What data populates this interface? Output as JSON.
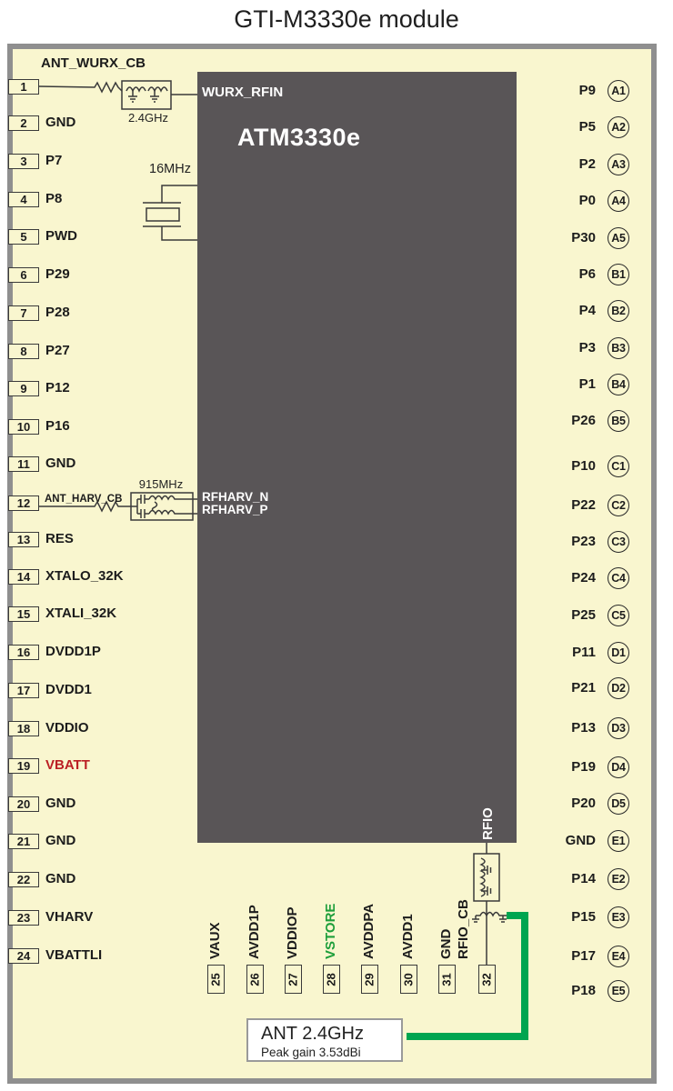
{
  "title": "GTI-M3330e module",
  "chip": {
    "name": "ATM3330e",
    "port_wurx": "WURX_RFIN",
    "port_rfharv_n": "RFHARV_N",
    "port_rfharv_p": "RFHARV_P",
    "port_rfio": "RFIO"
  },
  "left_pins": [
    {
      "num": "1",
      "label": "ANT_WURX_CB"
    },
    {
      "num": "2",
      "label": "GND"
    },
    {
      "num": "3",
      "label": "P7"
    },
    {
      "num": "4",
      "label": "P8"
    },
    {
      "num": "5",
      "label": "PWD"
    },
    {
      "num": "6",
      "label": "P29"
    },
    {
      "num": "7",
      "label": "P28"
    },
    {
      "num": "8",
      "label": "P27"
    },
    {
      "num": "9",
      "label": "P12"
    },
    {
      "num": "10",
      "label": "P16"
    },
    {
      "num": "11",
      "label": "GND"
    },
    {
      "num": "12",
      "label": "ANT_HARV_CB"
    },
    {
      "num": "13",
      "label": "RES"
    },
    {
      "num": "14",
      "label": "XTALO_32K"
    },
    {
      "num": "15",
      "label": "XTALI_32K"
    },
    {
      "num": "16",
      "label": "DVDD1P"
    },
    {
      "num": "17",
      "label": "DVDD1"
    },
    {
      "num": "18",
      "label": "VDDIO"
    },
    {
      "num": "19",
      "label": "VBATT",
      "color": "#bb1f24"
    },
    {
      "num": "20",
      "label": "GND"
    },
    {
      "num": "21",
      "label": "GND"
    },
    {
      "num": "22",
      "label": "GND"
    },
    {
      "num": "23",
      "label": "VHARV"
    },
    {
      "num": "24",
      "label": "VBATTLI"
    }
  ],
  "bottom_pins": [
    {
      "num": "25",
      "label": "VAUX"
    },
    {
      "num": "26",
      "label": "AVDD1P"
    },
    {
      "num": "27",
      "label": "VDDIOP"
    },
    {
      "num": "28",
      "label": "VSTORE",
      "color": "#1d9e3a"
    },
    {
      "num": "29",
      "label": "AVDDPA"
    },
    {
      "num": "30",
      "label": "AVDD1"
    },
    {
      "num": "31",
      "label": "GND"
    },
    {
      "num": "32",
      "label": "RFIO_CB"
    }
  ],
  "right_pins": [
    {
      "label": "P9",
      "ball": "A1"
    },
    {
      "label": "P5",
      "ball": "A2"
    },
    {
      "label": "P2",
      "ball": "A3"
    },
    {
      "label": "P0",
      "ball": "A4"
    },
    {
      "label": "P30",
      "ball": "A5"
    },
    {
      "label": "P6",
      "ball": "B1"
    },
    {
      "label": "P4",
      "ball": "B2"
    },
    {
      "label": "P3",
      "ball": "B3"
    },
    {
      "label": "P1",
      "ball": "B4"
    },
    {
      "label": "P26",
      "ball": "B5"
    },
    {
      "label": "P10",
      "ball": "C1"
    },
    {
      "label": "P22",
      "ball": "C2"
    },
    {
      "label": "P23",
      "ball": "C3"
    },
    {
      "label": "P24",
      "ball": "C4"
    },
    {
      "label": "P25",
      "ball": "C5"
    },
    {
      "label": "P11",
      "ball": "D1"
    },
    {
      "label": "P21",
      "ball": "D2"
    },
    {
      "label": "P13",
      "ball": "D3"
    },
    {
      "label": "P19",
      "ball": "D4"
    },
    {
      "label": "P20",
      "ball": "D5"
    },
    {
      "label": "GND",
      "ball": "E1"
    },
    {
      "label": "P14",
      "ball": "E2"
    },
    {
      "label": "P15",
      "ball": "E3"
    },
    {
      "label": "P17",
      "ball": "E4"
    },
    {
      "label": "P18",
      "ball": "E5"
    }
  ],
  "annotations": {
    "wurx_filter_freq": "2.4GHz",
    "crystal_freq": "16MHz",
    "harv_filter_freq": "915MHz"
  },
  "antenna": {
    "title": "ANT 2.4GHz",
    "subtitle": "Peak gain 3.53dBi"
  },
  "colors": {
    "background": "#f9f6cf",
    "chip": "#595557",
    "frame": "#8f8f8f",
    "vbatt_text": "#bb1f24",
    "vstore_text": "#1d9e3a",
    "antenna_trace": "#00a550"
  }
}
